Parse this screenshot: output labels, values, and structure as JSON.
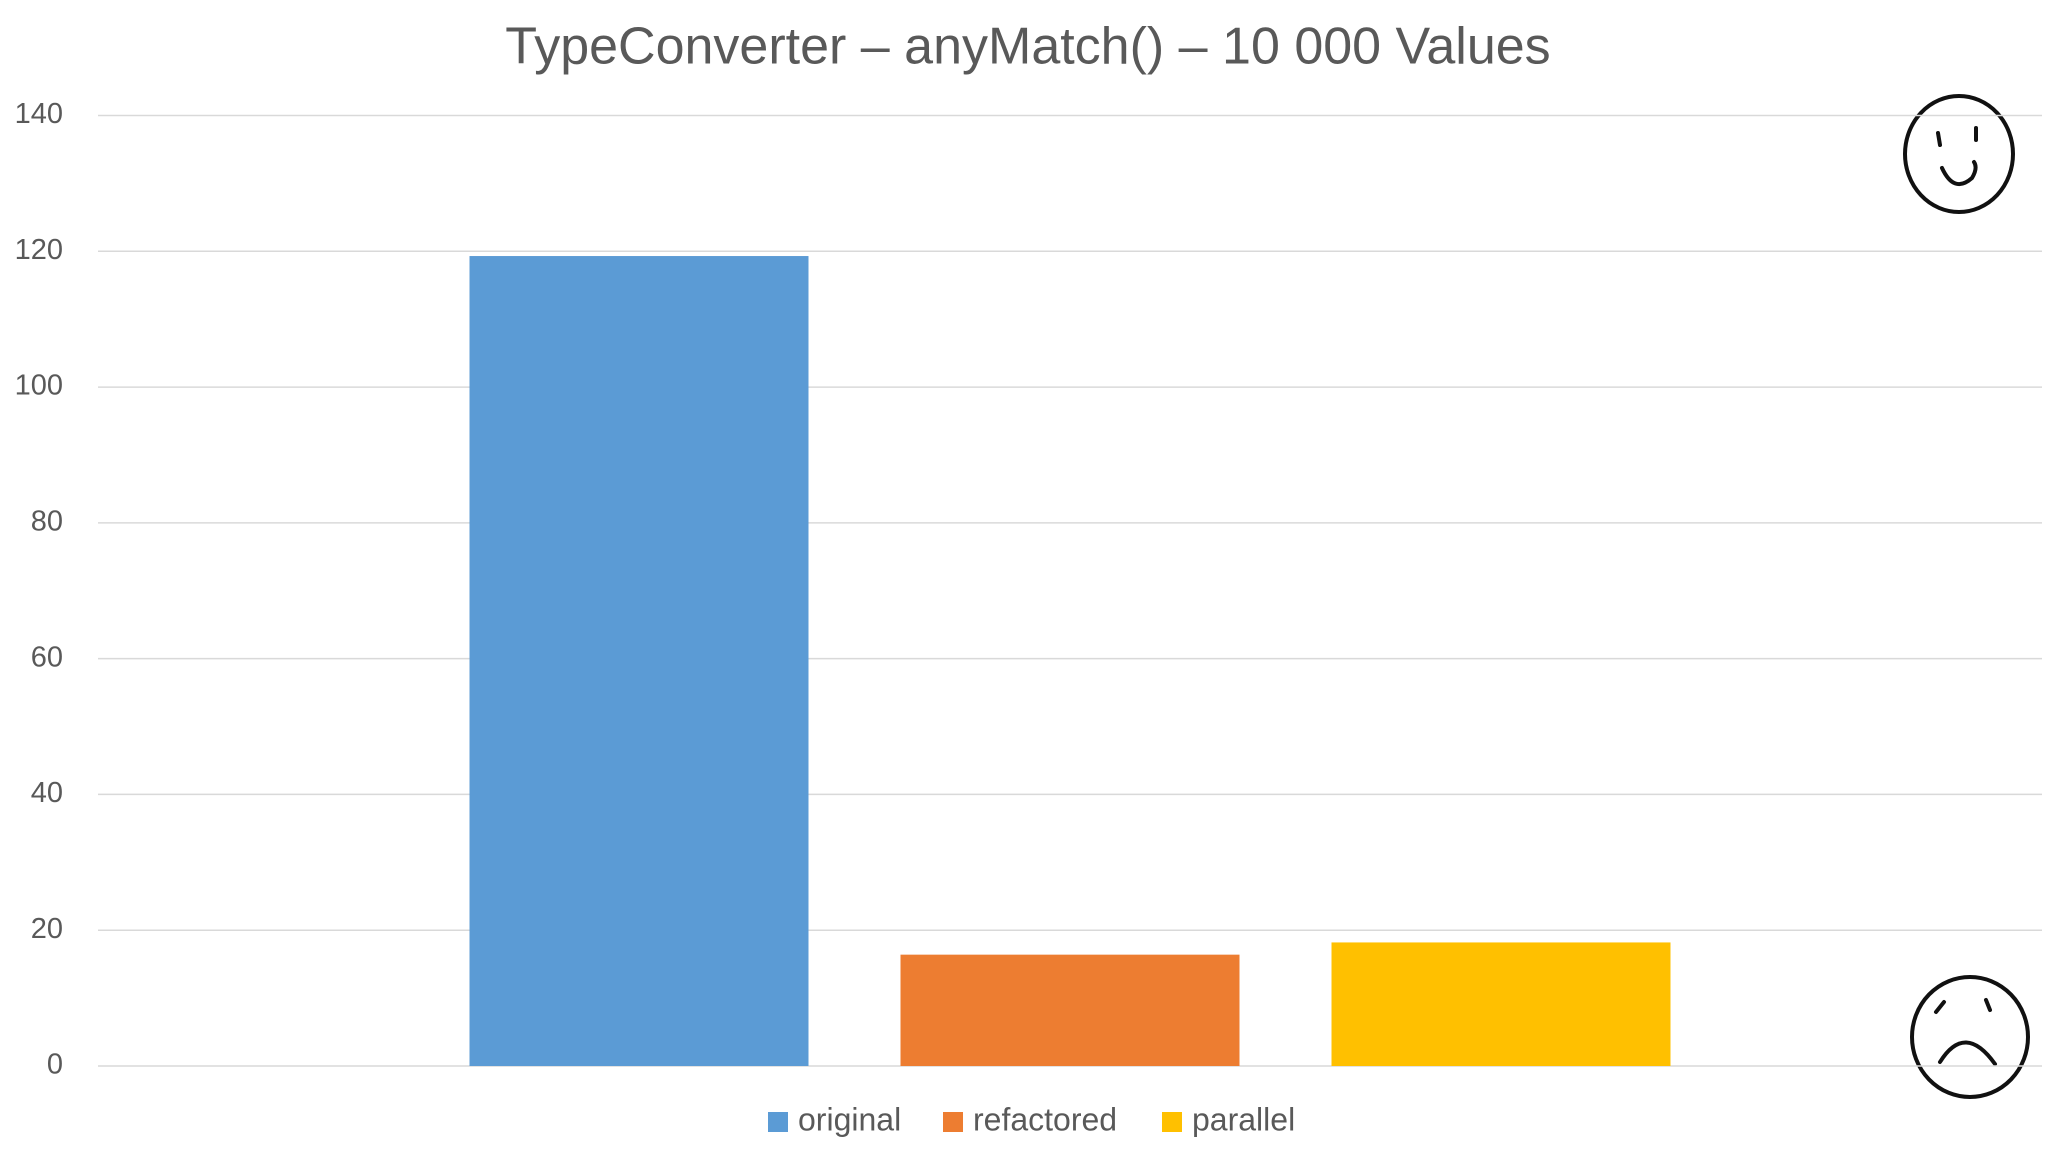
{
  "chart_data": {
    "type": "bar",
    "title": "TypeConverter – anyMatch() – 10 000 Values",
    "series": [
      {
        "name": "original",
        "color": "#5b9bd5",
        "values": [
          119.3
        ]
      },
      {
        "name": "refactored",
        "color": "#ed7d31",
        "values": [
          16.4
        ]
      },
      {
        "name": "parallel",
        "color": "#ffc000",
        "values": [
          18.2
        ]
      }
    ],
    "ylim": [
      0,
      140
    ],
    "yticks": [
      0,
      20,
      40,
      60,
      80,
      100,
      120,
      140
    ],
    "grid": true,
    "legend": "bottom"
  }
}
